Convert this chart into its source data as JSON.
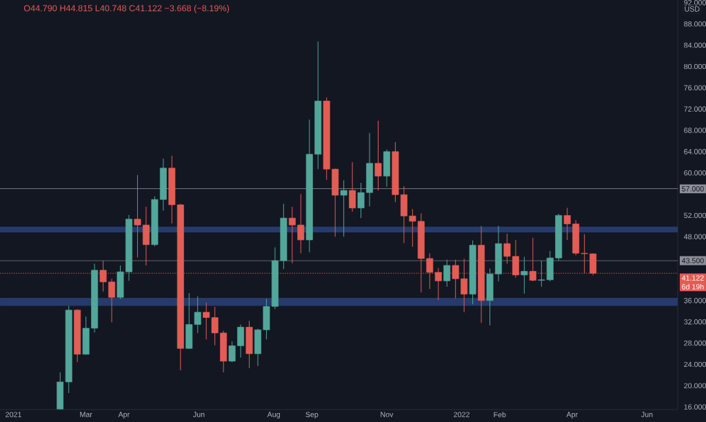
{
  "chart_data": {
    "type": "candlestick",
    "title": "O44.790 H44.815 L40.748 C41.122 −3.668 (−8.19%)",
    "annotations": [
      "USD",
      "6d 19h"
    ],
    "x": [
      "2021-02-08",
      "2021-02-15",
      "2021-02-22",
      "2021-03-01",
      "2021-03-08",
      "2021-03-15",
      "2021-03-22",
      "2021-03-29",
      "2021-04-05",
      "2021-04-12",
      "2021-04-19",
      "2021-04-26",
      "2021-05-03",
      "2021-05-10",
      "2021-05-17",
      "2021-05-24",
      "2021-05-31",
      "2021-06-07",
      "2021-06-14",
      "2021-06-21",
      "2021-06-28",
      "2021-07-05",
      "2021-07-12",
      "2021-07-19",
      "2021-07-26",
      "2021-08-02",
      "2021-08-09",
      "2021-08-16",
      "2021-08-23",
      "2021-08-30",
      "2021-09-06",
      "2021-09-13",
      "2021-09-20",
      "2021-09-27",
      "2021-10-04",
      "2021-10-11",
      "2021-10-18",
      "2021-10-25",
      "2021-11-01",
      "2021-11-08",
      "2021-11-15",
      "2021-11-22",
      "2021-11-29",
      "2021-12-06",
      "2021-12-13",
      "2021-12-20",
      "2021-12-27",
      "2022-01-03",
      "2022-01-10",
      "2022-01-17",
      "2022-01-24",
      "2022-01-31",
      "2022-02-07",
      "2022-02-14",
      "2022-02-21",
      "2022-02-28",
      "2022-03-07",
      "2022-03-14",
      "2022-03-21",
      "2022-03-28",
      "2022-04-04",
      "2022-04-11",
      "2022-04-18"
    ],
    "ohlc": [
      [
        15.6,
        22.5,
        15.5,
        20.7
      ],
      [
        20.7,
        35.0,
        18.6,
        34.2
      ],
      [
        34.2,
        34.4,
        24.4,
        25.9
      ],
      [
        25.9,
        33.0,
        25.8,
        30.8
      ],
      [
        30.8,
        42.9,
        30.0,
        41.7
      ],
      [
        41.7,
        43.5,
        37.7,
        39.5
      ],
      [
        39.5,
        40.1,
        31.9,
        36.6
      ],
      [
        36.6,
        42.6,
        36.3,
        41.4
      ],
      [
        41.4,
        52.1,
        39.7,
        51.3
      ],
      [
        51.3,
        59.6,
        44.1,
        50.2
      ],
      [
        50.2,
        53.6,
        42.6,
        46.5
      ],
      [
        46.5,
        55.6,
        46.2,
        55.0
      ],
      [
        55.0,
        62.7,
        52.9,
        60.9
      ],
      [
        60.9,
        63.2,
        50.5,
        54.0
      ],
      [
        54.0,
        54.2,
        22.9,
        27.0
      ],
      [
        27.0,
        37.4,
        26.9,
        31.5
      ],
      [
        31.5,
        36.8,
        29.9,
        33.8
      ],
      [
        33.8,
        35.6,
        28.7,
        32.8
      ],
      [
        32.8,
        34.8,
        27.6,
        29.9
      ],
      [
        29.9,
        30.3,
        22.5,
        24.6
      ],
      [
        24.6,
        28.3,
        24.4,
        27.5
      ],
      [
        27.5,
        31.5,
        25.3,
        31.0
      ],
      [
        31.0,
        32.2,
        23.3,
        26.0
      ],
      [
        26.0,
        30.7,
        23.7,
        30.5
      ],
      [
        30.5,
        36.3,
        28.7,
        34.9
      ],
      [
        34.9,
        46.0,
        34.4,
        43.5
      ],
      [
        43.5,
        54.2,
        41.9,
        51.5
      ],
      [
        51.5,
        53.6,
        43.0,
        50.2
      ],
      [
        50.2,
        56.0,
        44.9,
        47.4
      ],
      [
        47.4,
        70.0,
        45.1,
        63.5
      ],
      [
        63.5,
        84.7,
        60.7,
        73.5
      ],
      [
        73.5,
        74.2,
        58.7,
        60.7
      ],
      [
        60.7,
        60.8,
        48.0,
        55.8
      ],
      [
        55.8,
        58.6,
        48.0,
        56.7
      ],
      [
        56.7,
        62.0,
        52.7,
        53.4
      ],
      [
        53.4,
        58.1,
        51.5,
        56.3
      ],
      [
        56.3,
        67.5,
        53.7,
        61.8
      ],
      [
        61.8,
        69.8,
        56.7,
        59.4
      ],
      [
        59.4,
        64.4,
        57.4,
        64.0
      ],
      [
        64.0,
        65.8,
        54.5,
        55.9
      ],
      [
        55.9,
        57.5,
        46.8,
        51.9
      ],
      [
        51.9,
        53.2,
        46.1,
        50.9
      ],
      [
        50.9,
        52.4,
        37.5,
        43.9
      ],
      [
        43.9,
        44.9,
        38.2,
        41.3
      ],
      [
        41.3,
        42.1,
        36.1,
        39.7
      ],
      [
        39.7,
        43.7,
        38.6,
        42.6
      ],
      [
        42.6,
        43.7,
        36.4,
        40.1
      ],
      [
        40.1,
        43.9,
        33.8,
        37.2
      ],
      [
        37.2,
        47.3,
        35.3,
        46.4
      ],
      [
        46.4,
        50.0,
        31.8,
        36.0
      ],
      [
        36.0,
        42.0,
        31.3,
        41.0
      ],
      [
        41.0,
        50.0,
        39.6,
        46.7
      ],
      [
        46.7,
        48.6,
        42.9,
        44.3
      ],
      [
        44.3,
        47.4,
        40.3,
        40.8
      ],
      [
        40.8,
        44.2,
        37.3,
        41.5
      ],
      [
        41.5,
        47.8,
        39.6,
        39.8
      ],
      [
        39.8,
        43.5,
        38.6,
        39.9
      ],
      [
        39.9,
        45.3,
        39.6,
        44.0
      ],
      [
        44.0,
        52.3,
        43.5,
        52.0
      ],
      [
        52.0,
        53.4,
        47.4,
        50.4
      ],
      [
        50.4,
        51.1,
        44.5,
        44.9
      ],
      [
        44.9,
        48.5,
        41.1,
        44.8
      ],
      [
        44.79,
        44.815,
        40.748,
        41.122
      ]
    ],
    "colors": [
      "#53a69a",
      "#53a69a",
      "#e35d55",
      "#53a69a",
      "#53a69a",
      "#e35d55",
      "#e35d55",
      "#53a69a",
      "#53a69a",
      "#e35d55",
      "#e35d55",
      "#53a69a",
      "#53a69a",
      "#e35d55",
      "#e35d55",
      "#53a69a",
      "#53a69a",
      "#e35d55",
      "#e35d55",
      "#e35d55",
      "#53a69a",
      "#53a69a",
      "#e35d55",
      "#53a69a",
      "#53a69a",
      "#53a69a",
      "#53a69a",
      "#e35d55",
      "#e35d55",
      "#53a69a",
      "#53a69a",
      "#e35d55",
      "#e35d55",
      "#53a69a",
      "#e35d55",
      "#53a69a",
      "#53a69a",
      "#e35d55",
      "#53a69a",
      "#e35d55",
      "#e35d55",
      "#e35d55",
      "#e35d55",
      "#e35d55",
      "#e35d55",
      "#53a69a",
      "#e35d55",
      "#e35d55",
      "#53a69a",
      "#e35d55",
      "#53a69a",
      "#53a69a",
      "#e35d55",
      "#e35d55",
      "#53a69a",
      "#e35d55",
      "#53a69a",
      "#53a69a",
      "#53a69a",
      "#e35d55",
      "#e35d55",
      "#e35d55",
      "#e35d55"
    ],
    "xlim": [
      "2020-12-21",
      "2022-06-26"
    ],
    "xticks": [
      {
        "value": "2021-01-01",
        "label": "2021"
      },
      {
        "value": "2021-03-01",
        "label": "Mar"
      },
      {
        "value": "2021-04-01",
        "label": "Apr"
      },
      {
        "value": "2021-06-01",
        "label": "Jun"
      },
      {
        "value": "2021-08-01",
        "label": "Aug"
      },
      {
        "value": "2021-09-01",
        "label": "Sep"
      },
      {
        "value": "2021-11-01",
        "label": "Nov"
      },
      {
        "value": "2022-01-01",
        "label": "2022"
      },
      {
        "value": "2022-02-01",
        "label": "Feb"
      },
      {
        "value": "2022-04-01",
        "label": "Apr"
      },
      {
        "value": "2022-06-01",
        "label": "Jun"
      }
    ],
    "ylim": [
      15.5,
      92.5
    ],
    "yticks": [
      {
        "value": 16,
        "label": "16.000"
      },
      {
        "value": 20,
        "label": "20.000"
      },
      {
        "value": 24,
        "label": "24.000"
      },
      {
        "value": 28,
        "label": "28.000"
      },
      {
        "value": 32,
        "label": "32.000"
      },
      {
        "value": 36,
        "label": "36.000"
      },
      {
        "value": 48,
        "label": "48.000"
      },
      {
        "value": 52,
        "label": "52.000"
      },
      {
        "value": 60,
        "label": "60.000"
      },
      {
        "value": 64,
        "label": "64.000"
      },
      {
        "value": 68,
        "label": "68.000"
      },
      {
        "value": 72,
        "label": "72.000"
      },
      {
        "value": 76,
        "label": "76.000"
      },
      {
        "value": 80,
        "label": "80.000"
      },
      {
        "value": 84,
        "label": "84.000"
      },
      {
        "value": 88,
        "label": "88.000"
      },
      {
        "value": 92,
        "label": "92.000"
      }
    ],
    "bands": [
      {
        "axis": "y",
        "from": 48.8,
        "to": 49.9,
        "color": "#263a6b"
      },
      {
        "axis": "y",
        "from": 35.0,
        "to": 36.5,
        "color": "#263a6b"
      }
    ],
    "ref_lines": [
      {
        "axis": "y",
        "value": 57,
        "label": "57.000",
        "color": "#8d9099"
      },
      {
        "axis": "y",
        "value": 43.5,
        "label": "43.500",
        "color": "#8d9099"
      },
      {
        "axis": "y",
        "value": 41.122,
        "label": "41.122",
        "color": "#e35d55",
        "line_style": "dotted"
      }
    ]
  }
}
